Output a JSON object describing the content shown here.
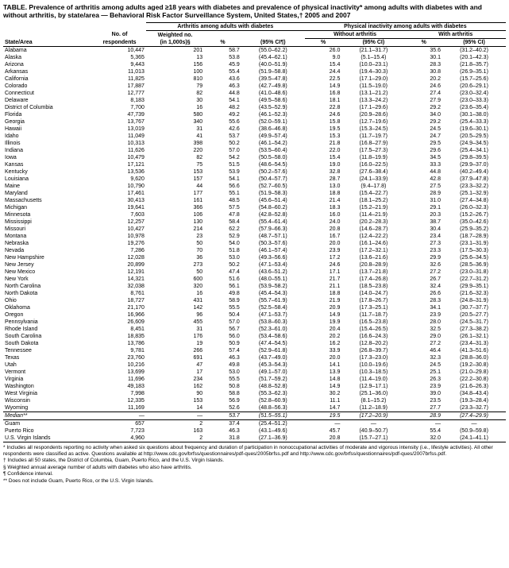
{
  "title": "TABLE. Prevalence of arthritis among adults aged ≥18 years with diabetes and prevalence of physical inactivity* among adults with diabetes with and without arthritis, by state/area — Behavioral Risk Factor Surveillance System, United States,† 2005 and 2007",
  "header_group_diabetes": "Arthritis among adults with diabetes",
  "header_group_inactivity": "Physical inactivity among adults with diabetes",
  "header_without": "Without arthritis",
  "header_with": "With arthritis",
  "col_state": "State/Area",
  "col_no": "No. of respondents",
  "col_weighted": "Weighted no. (in 1,000s)§",
  "col_pct": "%",
  "col_ci": "(95% CI¶)",
  "col_ci2": "(95% CI)",
  "median_label": "Median**",
  "rows": [
    [
      "Alabama",
      "10,447",
      "201",
      "58.7",
      "(55.0–62.2)",
      "26.0",
      "(21.1–31.7)",
      "35.6",
      "(31.2–40.2)"
    ],
    [
      "Alaska",
      "5,365",
      "13",
      "53.8",
      "(45.4–62.1)",
      "9.0",
      "(5.1–15.4)",
      "30.1",
      "(20.1–42.3)"
    ],
    [
      "Arizona",
      "9,443",
      "156",
      "45.9",
      "(40.0–51.9)",
      "15.4",
      "(10.0–23.1)",
      "28.3",
      "(21.8–35.7)"
    ],
    [
      "Arkansas",
      "11,013",
      "100",
      "55.4",
      "(51.9–58.8)",
      "24.4",
      "(19.4–30.3)",
      "30.8",
      "(26.9–35.1)"
    ],
    [
      "California",
      "11,825",
      "810",
      "43.6",
      "(39.5–47.8)",
      "22.5",
      "(17.1–29.0)",
      "20.2",
      "(15.7–25.6)"
    ],
    [
      "Colorado",
      "17,887",
      "79",
      "46.3",
      "(42.7–49.8)",
      "14.9",
      "(11.5–19.0)",
      "24.6",
      "(20.6–29.1)"
    ],
    [
      "Connecticut",
      "12,777",
      "82",
      "44.8",
      "(41.0–48.6)",
      "16.8",
      "(13.1–21.2)",
      "27.4",
      "(23.0–32.4)"
    ],
    [
      "Delaware",
      "8,183",
      "30",
      "54.1",
      "(49.5–58.6)",
      "18.1",
      "(13.3–24.2)",
      "27.9",
      "(23.0–33.3)"
    ],
    [
      "District of Columbia",
      "7,700",
      "16",
      "48.2",
      "(43.5–52.9)",
      "22.8",
      "(17.1–29.6)",
      "29.2",
      "(23.6–35.4)"
    ],
    [
      "Florida",
      "47,739",
      "580",
      "49.2",
      "(46.1–52.3)",
      "24.6",
      "(20.9–28.6)",
      "34.0",
      "(30.1–38.0)"
    ],
    [
      "Georgia",
      "13,767",
      "340",
      "55.6",
      "(52.0–59.1)",
      "15.8",
      "(12.7–19.6)",
      "29.2",
      "(25.4–33.3)"
    ],
    [
      "Hawaii",
      "13,019",
      "31",
      "42.6",
      "(38.6–46.8)",
      "19.5",
      "(15.3–24.5)",
      "24.5",
      "(19.6–30.1)"
    ],
    [
      "Idaho",
      "11,049",
      "41",
      "53.7",
      "(49.9–57.4)",
      "15.3",
      "(11.7–19.7)",
      "24.7",
      "(20.5–29.5)"
    ],
    [
      "Illinois",
      "10,313",
      "398",
      "50.2",
      "(46.1–54.2)",
      "21.8",
      "(16.8–27.9)",
      "29.5",
      "(24.9–34.5)"
    ],
    [
      "Indiana",
      "11,626",
      "220",
      "57.0",
      "(53.5–60.4)",
      "22.0",
      "(17.5–27.3)",
      "29.6",
      "(25.4–34.1)"
    ],
    [
      "Iowa",
      "10,479",
      "82",
      "54.2",
      "(50.5–58.0)",
      "15.4",
      "(11.8–19.9)",
      "34.5",
      "(29.8–39.5)"
    ],
    [
      "Kansas",
      "17,121",
      "75",
      "51.5",
      "(48.6–54.5)",
      "19.0",
      "(16.0–22.5)",
      "33.3",
      "(29.9–37.0)"
    ],
    [
      "Kentucky",
      "13,536",
      "153",
      "53.9",
      "(50.2–57.6)",
      "32.8",
      "(27.6–38.4)",
      "44.8",
      "(40.2–49.4)"
    ],
    [
      "Louisiana",
      "9,620",
      "157",
      "54.1",
      "(50.4–57.7)",
      "28.7",
      "(24.1–33.9)",
      "42.8",
      "(37.9–47.8)"
    ],
    [
      "Maine",
      "10,790",
      "44",
      "56.6",
      "(52.7–60.5)",
      "13.0",
      "(9.4–17.8)",
      "27.5",
      "(23.3–32.2)"
    ],
    [
      "Maryland",
      "17,461",
      "177",
      "55.1",
      "(51.9–58.3)",
      "18.8",
      "(15.4–22.7)",
      "28.9",
      "(25.1–32.9)"
    ],
    [
      "Massachusetts",
      "30,413",
      "161",
      "48.5",
      "(45.6–51.4)",
      "21.4",
      "(18.1–25.2)",
      "31.0",
      "(27.4–34.8)"
    ],
    [
      "Michigan",
      "19,641",
      "366",
      "57.5",
      "(54.8–60.2)",
      "18.3",
      "(15.2–21.9)",
      "29.1",
      "(26.0–32.3)"
    ],
    [
      "Minnesota",
      "7,603",
      "106",
      "47.8",
      "(42.8–52.8)",
      "16.0",
      "(11.4–21.9)",
      "20.3",
      "(15.2–26.7)"
    ],
    [
      "Mississippi",
      "12,257",
      "130",
      "58.4",
      "(55.4–61.4)",
      "24.0",
      "(20.2–28.3)",
      "38.7",
      "(35.0–42.6)"
    ],
    [
      "Missouri",
      "10,427",
      "214",
      "62.2",
      "(57.9–66.3)",
      "20.8",
      "(14.6–28.7)",
      "30.4",
      "(25.9–35.2)"
    ],
    [
      "Montana",
      "10,978",
      "23",
      "52.9",
      "(48.7–57.1)",
      "16.7",
      "(12.4–22.2)",
      "23.4",
      "(18.7–28.9)"
    ],
    [
      "Nebraska",
      "19,276",
      "50",
      "54.0",
      "(50.3–57.6)",
      "20.0",
      "(16.1–24.6)",
      "27.3",
      "(23.1–31.9)"
    ],
    [
      "Nevada",
      "7,286",
      "70",
      "51.8",
      "(46.1–57.4)",
      "23.9",
      "(17.2–32.1)",
      "23.3",
      "(17.5–30.3)"
    ],
    [
      "New Hampshire",
      "12,028",
      "36",
      "53.0",
      "(49.3–56.6)",
      "17.2",
      "(13.6–21.6)",
      "29.9",
      "(25.6–34.5)"
    ],
    [
      "New Jersey",
      "20,899",
      "273",
      "50.2",
      "(47.1–53.4)",
      "24.6",
      "(20.8–28.9)",
      "32.6",
      "(28.5–36.9)"
    ],
    [
      "New Mexico",
      "12,191",
      "50",
      "47.4",
      "(43.6–51.2)",
      "17.1",
      "(13.7–21.8)",
      "27.2",
      "(23.0–31.8)"
    ],
    [
      "New York",
      "14,321",
      "600",
      "51.6",
      "(48.0–55.1)",
      "21.7",
      "(17.4–26.8)",
      "26.7",
      "(22.7–31.2)"
    ],
    [
      "North Carolina",
      "32,038",
      "320",
      "56.1",
      "(53.9–58.2)",
      "21.1",
      "(18.5–23.8)",
      "32.4",
      "(29.9–35.1)"
    ],
    [
      "North Dakota",
      "8,761",
      "16",
      "49.8",
      "(45.4–54.3)",
      "18.8",
      "(14.0–24.7)",
      "26.6",
      "(21.6–32.3)"
    ],
    [
      "Ohio",
      "18,727",
      "431",
      "58.9",
      "(55.7–61.9)",
      "21.9",
      "(17.8–26.7)",
      "28.3",
      "(24.8–31.9)"
    ],
    [
      "Oklahoma",
      "21,170",
      "142",
      "55.5",
      "(52.5–58.4)",
      "20.9",
      "(17.3–25.1)",
      "34.1",
      "(30.7–37.7)"
    ],
    [
      "Oregon",
      "16,966",
      "96",
      "50.4",
      "(47.1–53.7)",
      "14.9",
      "(11.7–18.7)",
      "23.9",
      "(20.5–27.7)"
    ],
    [
      "Pennsylvania",
      "26,609",
      "455",
      "57.0",
      "(53.8–60.3)",
      "19.9",
      "(16.5–23.8)",
      "28.0",
      "(24.5–31.7)"
    ],
    [
      "Rhode Island",
      "8,451",
      "31",
      "56.7",
      "(52.3–61.0)",
      "20.4",
      "(15.4–26.5)",
      "32.5",
      "(27.3–38.2)"
    ],
    [
      "South Carolina",
      "18,835",
      "176",
      "56.0",
      "(53.4–58.6)",
      "20.2",
      "(16.6–24.3)",
      "29.0",
      "(26.1–32.1)"
    ],
    [
      "South Dakota",
      "13,786",
      "19",
      "50.9",
      "(47.4–54.5)",
      "16.2",
      "(12.8–20.2)",
      "27.2",
      "(23.4–31.3)"
    ],
    [
      "Tennessee",
      "9,781",
      "266",
      "57.4",
      "(52.9–61.8)",
      "33.9",
      "(26.8–39.7)",
      "46.4",
      "(41.3–51.6)"
    ],
    [
      "Texas",
      "23,760",
      "691",
      "46.3",
      "(43.7–49.0)",
      "20.0",
      "(17.3–23.0)",
      "32.3",
      "(28.8–36.0)"
    ],
    [
      "Utah",
      "10,216",
      "47",
      "49.8",
      "(45.3–54.3)",
      "14.1",
      "(10.0–19.6)",
      "24.5",
      "(19.2–30.8)"
    ],
    [
      "Vermont",
      "13,699",
      "17",
      "53.0",
      "(49.1–57.0)",
      "13.9",
      "(10.3–18.5)",
      "25.1",
      "(21.0–29.8)"
    ],
    [
      "Virginia",
      "11,696",
      "234",
      "55.5",
      "(51.7–59.2)",
      "14.8",
      "(11.4–19.0)",
      "26.3",
      "(22.2–30.8)"
    ],
    [
      "Washington",
      "49,183",
      "162",
      "50.8",
      "(48.8–52.8)",
      "14.9",
      "(12.9–17.1)",
      "23.9",
      "(21.6–26.3)"
    ],
    [
      "West Virginia",
      "7,998",
      "90",
      "58.8",
      "(55.3–62.3)",
      "30.2",
      "(25.1–36.0)",
      "39.0",
      "(34.8–43.4)"
    ],
    [
      "Wisconsin",
      "12,335",
      "153",
      "56.9",
      "(52.8–60.9)",
      "11.1",
      "(8.1–15.2)",
      "23.5",
      "(19.3–28.4)"
    ],
    [
      "Wyoming",
      "11,169",
      "14",
      "52.6",
      "(48.8–56.3)",
      "14.7",
      "(11.2–18.9)",
      "27.7",
      "(23.3–32.7)"
    ]
  ],
  "median": [
    "—",
    "—",
    "53.7",
    "(51.5–55.1)",
    "19.5",
    "(17.2–20.9)",
    "28.9",
    "(27.4–29.9)"
  ],
  "territory_rows": [
    [
      "Guam",
      "657",
      "2",
      "37.4",
      "(25.4–51.2)",
      "—",
      "—",
      "—",
      "—"
    ],
    [
      "Puerto Rico",
      "7,723",
      "163",
      "46.3",
      "(43.1–49.6)",
      "45.7",
      "(40.9–50.7)",
      "55.4",
      "(50.9–59.8)"
    ],
    [
      "U.S. Virgin Islands",
      "4,960",
      "2",
      "31.8",
      "(27.1–36.9)",
      "20.8",
      "(15.7–27.1)",
      "32.0",
      "(24.1–41.1)"
    ]
  ],
  "footnotes": [
    "* Includes all respondents reporting no activity when asked six questions about frequency and duration of participation in nonoccupational activities of moderate and vigorous intensity (i.e., lifestyle activities). All other respondents were classified as active. Questions available at http://www.cdc.gov/brfss/questionnaires/pdf-ques/2005brfss.pdf and http://www.cdc.gov/brfss/questionnaires/pdf-ques/2007brfss.pdf.",
    "† Includes all 50 states, the District of Columbia, Guam, Puerto Rico, and the U.S. Virgin Islands.",
    "§ Weighted annual average number of adults with diabetes who also have arthritis.",
    "¶ Confidence interval.",
    "** Does not include Guam, Puerto Rico, or the U.S. Virgin Islands."
  ]
}
